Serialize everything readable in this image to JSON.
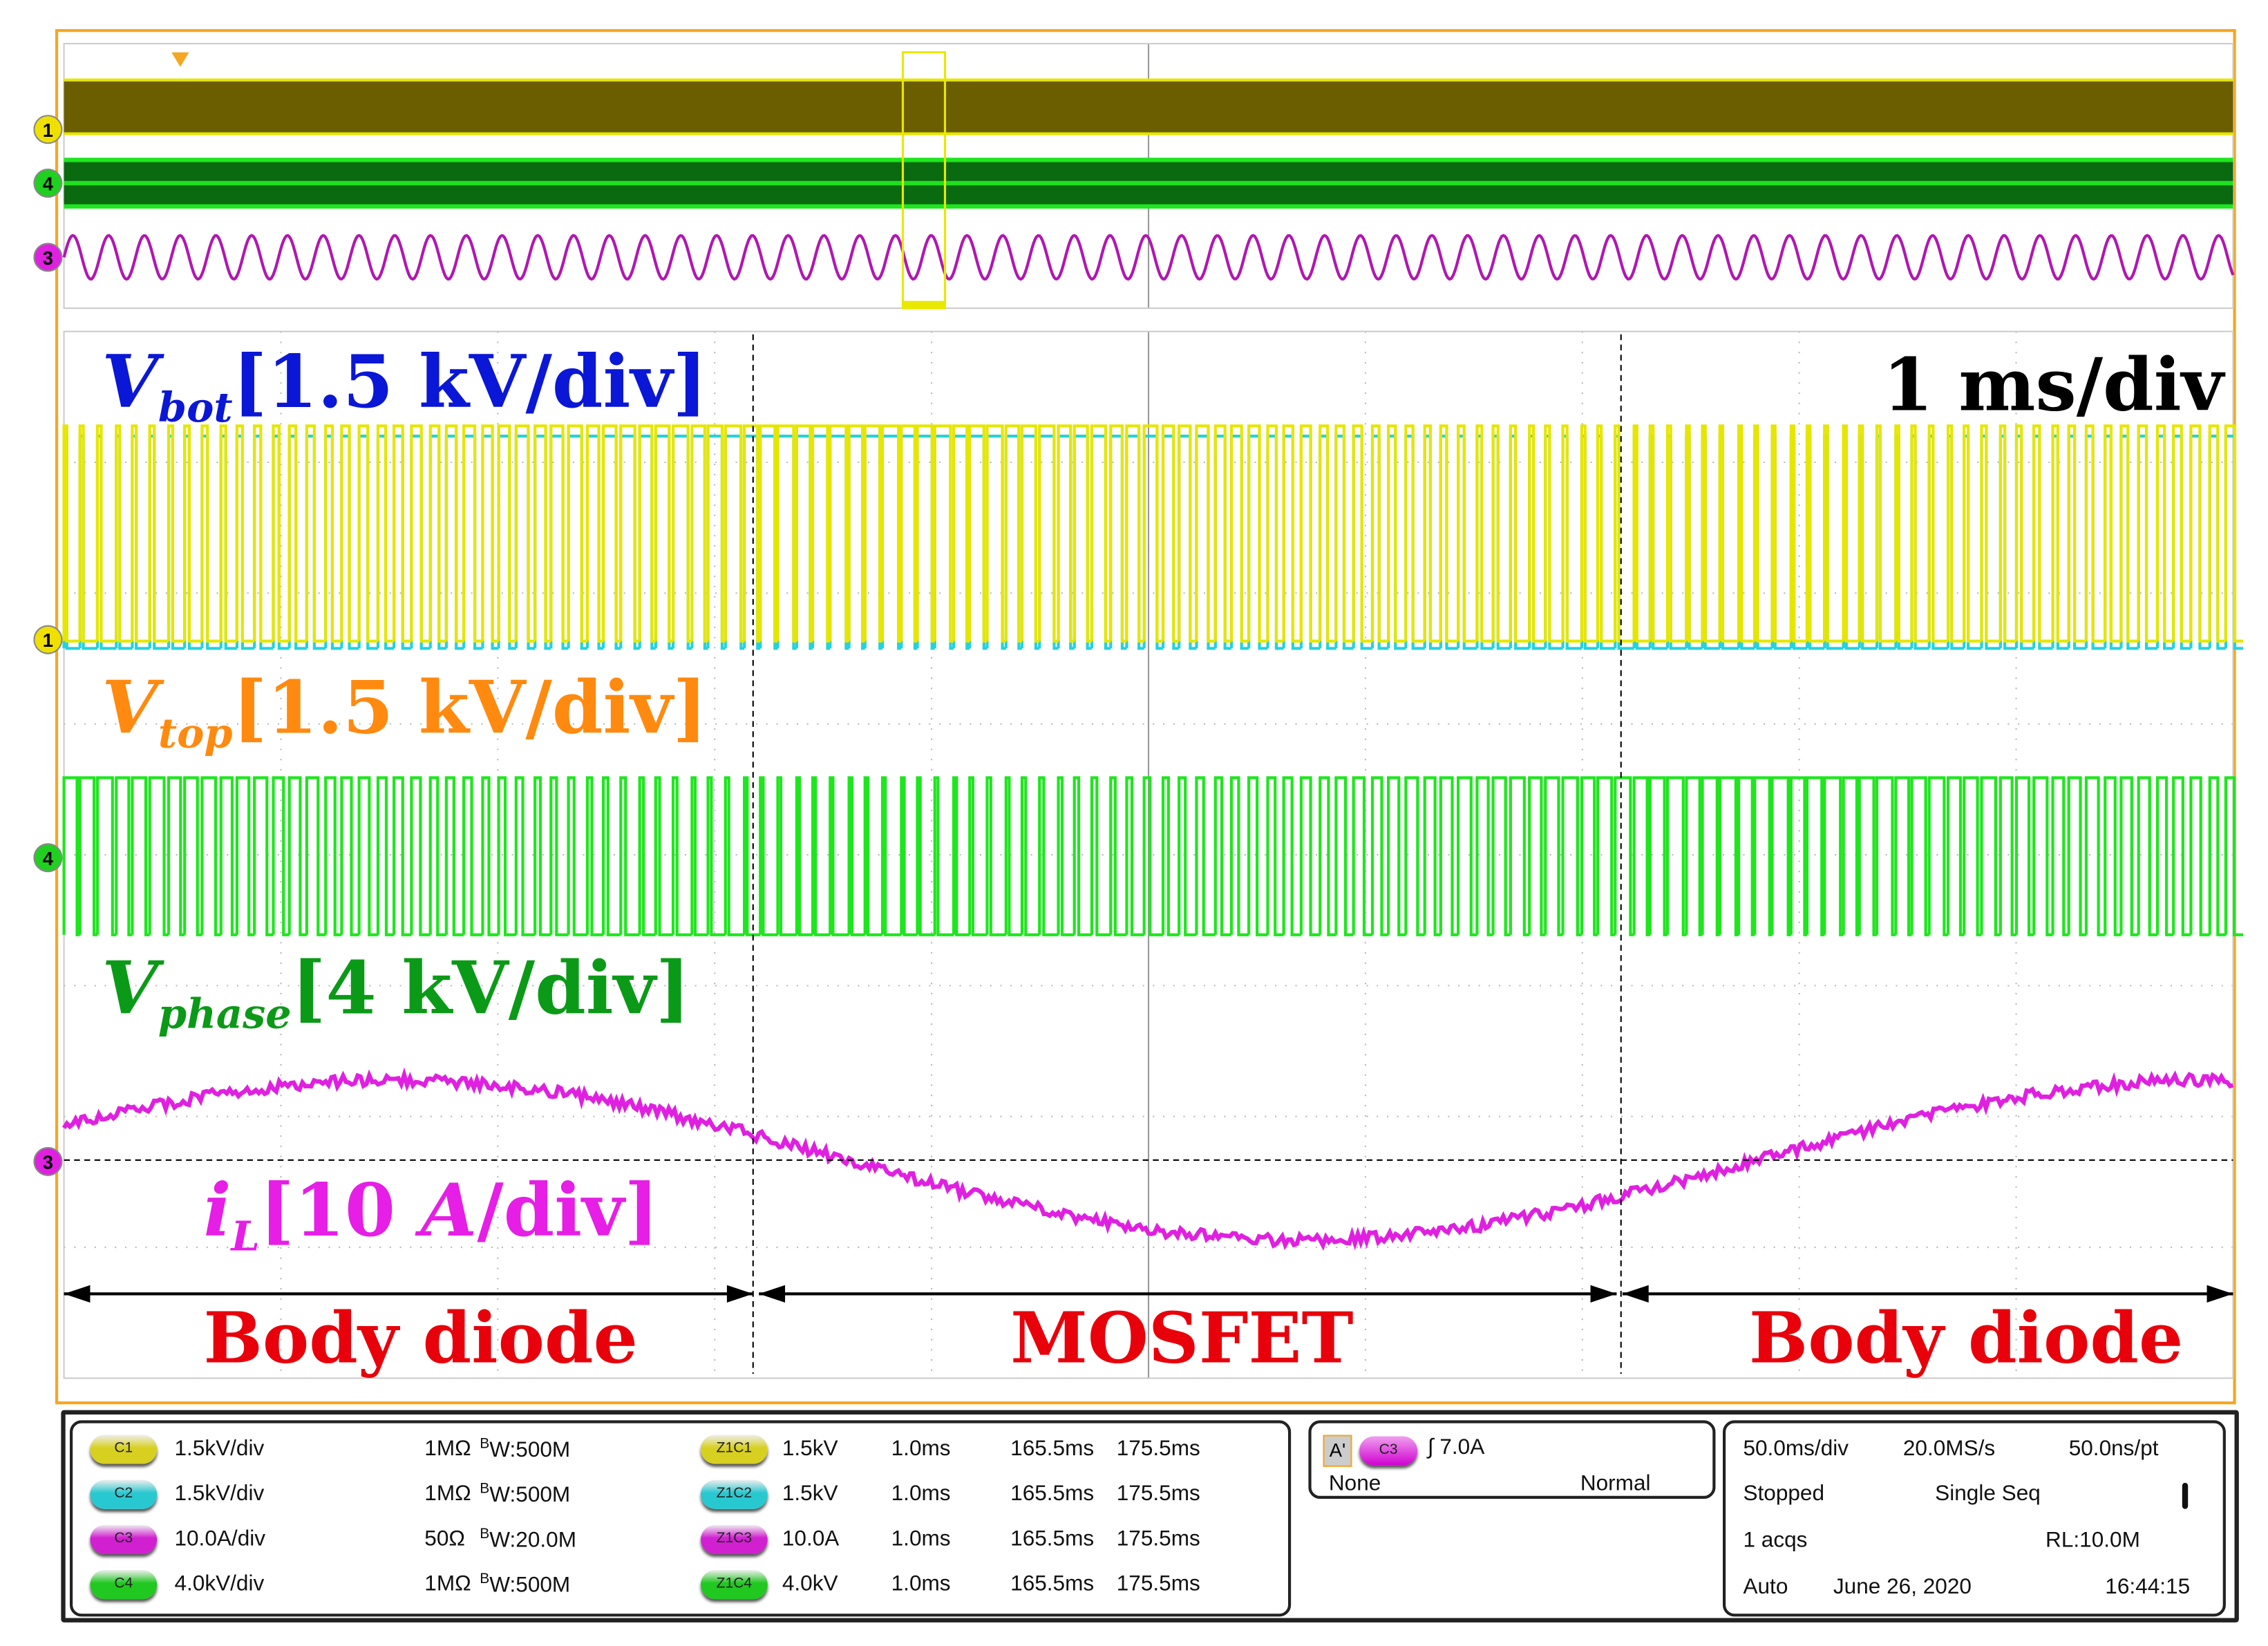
{
  "plot": {
    "time_scale": "1 ms/div",
    "labels": {
      "vbot": {
        "main": "V",
        "sub": "bot",
        "scale": "[1.5 kV/div]",
        "color": "#0a17d6"
      },
      "vtop": {
        "main": "V",
        "sub": "top",
        "scale": "[1.5 kV/div]",
        "color": "#ff8a0f"
      },
      "vphase": {
        "main": "V",
        "sub": "phase",
        "scale": "[4 kV/div]",
        "color": "#0b9a17"
      },
      "il": {
        "main": "i",
        "sub": "L",
        "scale_open": "[10 ",
        "scale_unit": "A",
        "scale_close": "/div]",
        "color": "#e61ee6"
      }
    },
    "regions": [
      "Body diode",
      "MOSFET",
      "Body diode"
    ],
    "markers_overview": [
      "1",
      "4",
      "3"
    ],
    "markers_main": [
      "1",
      "4",
      "3"
    ],
    "colors": {
      "ch1": "#e6e600",
      "ch2": "#22d3e0",
      "ch3": "#e020e0",
      "ch4": "#1ee61e",
      "region": "#e8000b"
    }
  },
  "channels": [
    {
      "badge": "C1",
      "scale": "1.5kV/div",
      "impedance": "1MΩ",
      "bw": "W:500M",
      "zoom_badge": "Z1C1",
      "zoom_scale": "1.5kV",
      "zoom_time": "1.0ms",
      "zoom_start": "165.5ms",
      "zoom_end": "175.5ms",
      "color": "#d8d020"
    },
    {
      "badge": "C2",
      "scale": "1.5kV/div",
      "impedance": "1MΩ",
      "bw": "W:500M",
      "zoom_badge": "Z1C2",
      "zoom_scale": "1.5kV",
      "zoom_time": "1.0ms",
      "zoom_start": "165.5ms",
      "zoom_end": "175.5ms",
      "color": "#28c8d0"
    },
    {
      "badge": "C3",
      "scale": "10.0A/div",
      "impedance": "50Ω",
      "bw": "W:20.0M",
      "zoom_badge": "Z1C3",
      "zoom_scale": "10.0A",
      "zoom_time": "1.0ms",
      "zoom_start": "165.5ms",
      "zoom_end": "175.5ms",
      "color": "#d020d0"
    },
    {
      "badge": "C4",
      "scale": "4.0kV/div",
      "impedance": "1MΩ",
      "bw": "W:500M",
      "zoom_badge": "Z1C4",
      "zoom_scale": "4.0kV",
      "zoom_time": "1.0ms",
      "zoom_start": "165.5ms",
      "zoom_end": "175.5ms",
      "color": "#20c820"
    }
  ],
  "bw_prefix": "B",
  "trigger": {
    "type": "A'",
    "source": "C3",
    "level": "7.0A",
    "coupling": "None",
    "mode": "Normal"
  },
  "acquisition": {
    "timebase": "50.0ms/div",
    "sample_rate": "20.0MS/s",
    "resolution": "50.0ns/pt",
    "state": "Stopped",
    "run_mode": "Single Seq",
    "acqs": "1 acqs",
    "record_length": "RL:10.0M",
    "trigger_mode": "Auto",
    "date": "June 26, 2020",
    "time": "16:44:15"
  }
}
